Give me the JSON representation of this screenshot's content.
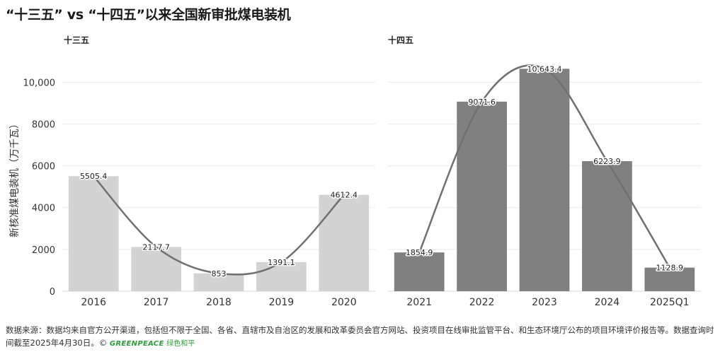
{
  "title": "“十三五” vs “十四五”以来全国新审批煤电装机",
  "source_text": "数据来源：数据均来自官方公开渠道，包括但不限于全国、各省、直辖市及自治区的发展和改革委员会官方网站、投资项目在线审批监管平台、和生态环境厅公布的项目环境评价报告等。数据查询时间截至2025年4月30日。©",
  "logo": {
    "en": "GREENPEACE",
    "cn": "绿色和平"
  },
  "colors": {
    "left_bars": "#d3d3d3",
    "right_bars": "#808080",
    "trend_line": "#707070",
    "grid": "#ececec"
  },
  "chart_data": [
    {
      "type": "bar",
      "panel_title": "十三五",
      "ylabel": "新核准煤电装机（万千瓦）",
      "ylim": [
        0,
        11500
      ],
      "yticks": [
        0,
        2000,
        4000,
        6000,
        8000,
        10000
      ],
      "ytick_labels": [
        "0",
        "2000",
        "4000",
        "6000",
        "8000",
        "10,000"
      ],
      "categories": [
        "2016",
        "2017",
        "2018",
        "2019",
        "2020"
      ],
      "values": [
        5505.4,
        2117.7,
        853,
        1391.1,
        4612.4
      ],
      "value_labels": [
        "5505.4",
        "2117.7",
        "853",
        "1391.1",
        "4612.4"
      ],
      "trend_line": true,
      "grid": true
    },
    {
      "type": "bar",
      "panel_title": "十四五",
      "ylim": [
        0,
        11500
      ],
      "categories": [
        "2021",
        "2022",
        "2023",
        "2024",
        "2025Q1"
      ],
      "values": [
        1854.9,
        9071.6,
        10643.4,
        6223.9,
        1128.9
      ],
      "value_labels": [
        "1854.9",
        "9071.6",
        "10,643.4",
        "6223.9",
        "1128.9"
      ],
      "trend_line": true,
      "grid": true
    }
  ]
}
